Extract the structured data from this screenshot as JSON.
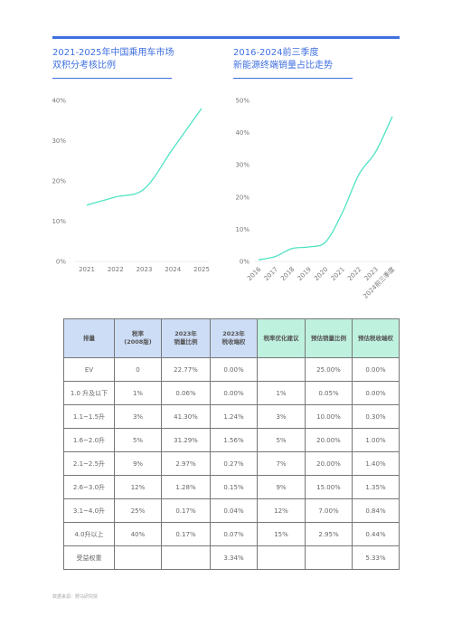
{
  "left_chart": {
    "title_line1": "2021-2025年中国乘用车市场",
    "title_line2": "双积分考核比例"
  },
  "right_chart": {
    "title_line1": "2016-2024前三季度",
    "title_line2": "新能源终端销量占比走势"
  },
  "chart_data": [
    {
      "type": "line",
      "title": "2021-2025年中国乘用车市场双积分考核比例",
      "x": [
        "2021",
        "2022",
        "2023",
        "2024",
        "2025"
      ],
      "y_ticks": [
        "0%",
        "10%",
        "20%",
        "30%",
        "40%"
      ],
      "ylim": [
        0,
        40
      ],
      "series": [
        {
          "values": [
            14,
            16,
            18,
            28,
            38
          ]
        }
      ],
      "line_color": "#4fe3c4",
      "grid": false
    },
    {
      "type": "line",
      "title": "2016-2024前三季度新能源终端销量占比走势",
      "x": [
        "2016",
        "2017",
        "2018",
        "2019",
        "2020",
        "2021",
        "2022",
        "2023",
        "2024前三季度"
      ],
      "y_ticks": [
        "0%",
        "10%",
        "20%",
        "30%",
        "40%",
        "50%"
      ],
      "ylim": [
        0,
        50
      ],
      "series": [
        {
          "values": [
            0.5,
            1.5,
            4,
            4.5,
            6,
            15,
            27,
            34,
            45
          ]
        }
      ],
      "line_color": "#4fe3c4",
      "grid": false
    }
  ],
  "table": {
    "headers": [
      "排量",
      "税率\n(2008版)",
      "2023年\n销量比例",
      "2023年\n税收端权",
      "税率优化建议",
      "预估销量比例",
      "预估税收端权"
    ],
    "rows": [
      [
        "EV",
        "0",
        "22.77%",
        "0.00%",
        "",
        "25.00%",
        "0.00%"
      ],
      [
        "1.0 升及以下",
        "1%",
        "0.06%",
        "0.00%",
        "1%",
        "0.05%",
        "0.00%"
      ],
      [
        "1.1~1.5升",
        "3%",
        "41.30%",
        "1.24%",
        "3%",
        "10.00%",
        "0.30%"
      ],
      [
        "1.6~2.0升",
        "5%",
        "31.29%",
        "1.56%",
        "5%",
        "20.00%",
        "1.00%"
      ],
      [
        "2.1~2.5升",
        "9%",
        "2.97%",
        "0.27%",
        "7%",
        "20.00%",
        "1.40%"
      ],
      [
        "2.6~3.0升",
        "12%",
        "1.28%",
        "0.15%",
        "9%",
        "15.00%",
        "1.35%"
      ],
      [
        "3.1~4.0升",
        "25%",
        "0.17%",
        "0.04%",
        "12%",
        "7.00%",
        "0.84%"
      ],
      [
        "4.0升以上",
        "40%",
        "0.17%",
        "0.07%",
        "15%",
        "2.95%",
        "0.44%"
      ],
      [
        "受益权重",
        "",
        "",
        "3.34%",
        "",
        "",
        "5.33%"
      ]
    ]
  },
  "source": "数据来源：野马研究院"
}
